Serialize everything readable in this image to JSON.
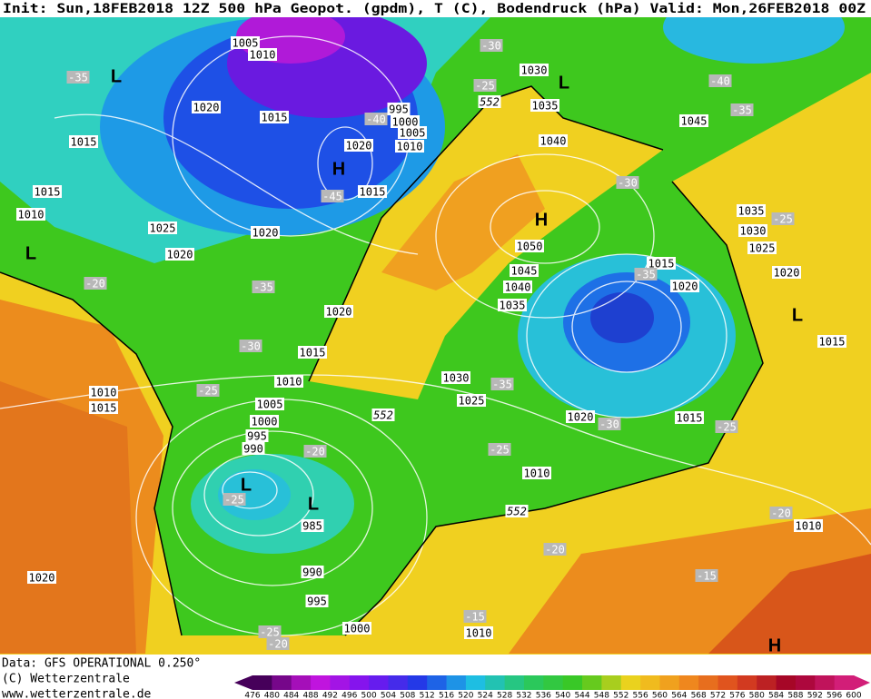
{
  "header": {
    "title": "Init: Sun,18FEB2018 12Z 500 hPa Geopot. (gpdm), T (C), Bodendruck (hPa)  Valid: Mon,26FEB2018 00Z"
  },
  "footer": {
    "lines": [
      "Data: GFS OPERATIONAL 0.250°",
      "(C) Wetterzentrale",
      "www.wetterzentrale.de"
    ]
  },
  "colorbar": {
    "labels": [
      476,
      480,
      484,
      488,
      492,
      496,
      500,
      504,
      508,
      512,
      516,
      520,
      524,
      528,
      532,
      536,
      540,
      544,
      548,
      552,
      556,
      560,
      564,
      568,
      572,
      576,
      580,
      584,
      588,
      592,
      596,
      600
    ]
  },
  "map": {
    "isobar_labels": [
      "1005",
      "1010",
      "1015",
      "1020",
      "1015",
      "1015",
      "1010",
      "1025",
      "1020",
      "1020",
      "995",
      "1000",
      "1005",
      "1010",
      "1020",
      "1015",
      "1030",
      "1035",
      "1045",
      "1040",
      "1050",
      "1045",
      "1040",
      "1035",
      "1015",
      "1020",
      "1035",
      "1030",
      "1025",
      "1020",
      "1015",
      "1020",
      "1015",
      "1010",
      "1005",
      "1000",
      "995",
      "990",
      "1030",
      "1025",
      "1020",
      "1015",
      "1010",
      "1010",
      "1015",
      "985",
      "990",
      "995",
      "1000",
      "1010",
      "1020",
      "1010"
    ],
    "temperature_labels": [
      "-35",
      "-30",
      "-25",
      "-40",
      "-45",
      "-40",
      "-35",
      "-30",
      "-25",
      "-35",
      "-20",
      "-35",
      "-30",
      "-25",
      "-35",
      "-30",
      "-25",
      "-25",
      "-20",
      "-25",
      "-20",
      "-20",
      "-15",
      "-15",
      "-25",
      "-20"
    ],
    "contour_552_labels": [
      "552",
      "552",
      "552"
    ],
    "pressure_centers": [
      "L",
      "L",
      "L",
      "L",
      "L",
      "L",
      "H",
      "H",
      "H"
    ]
  }
}
